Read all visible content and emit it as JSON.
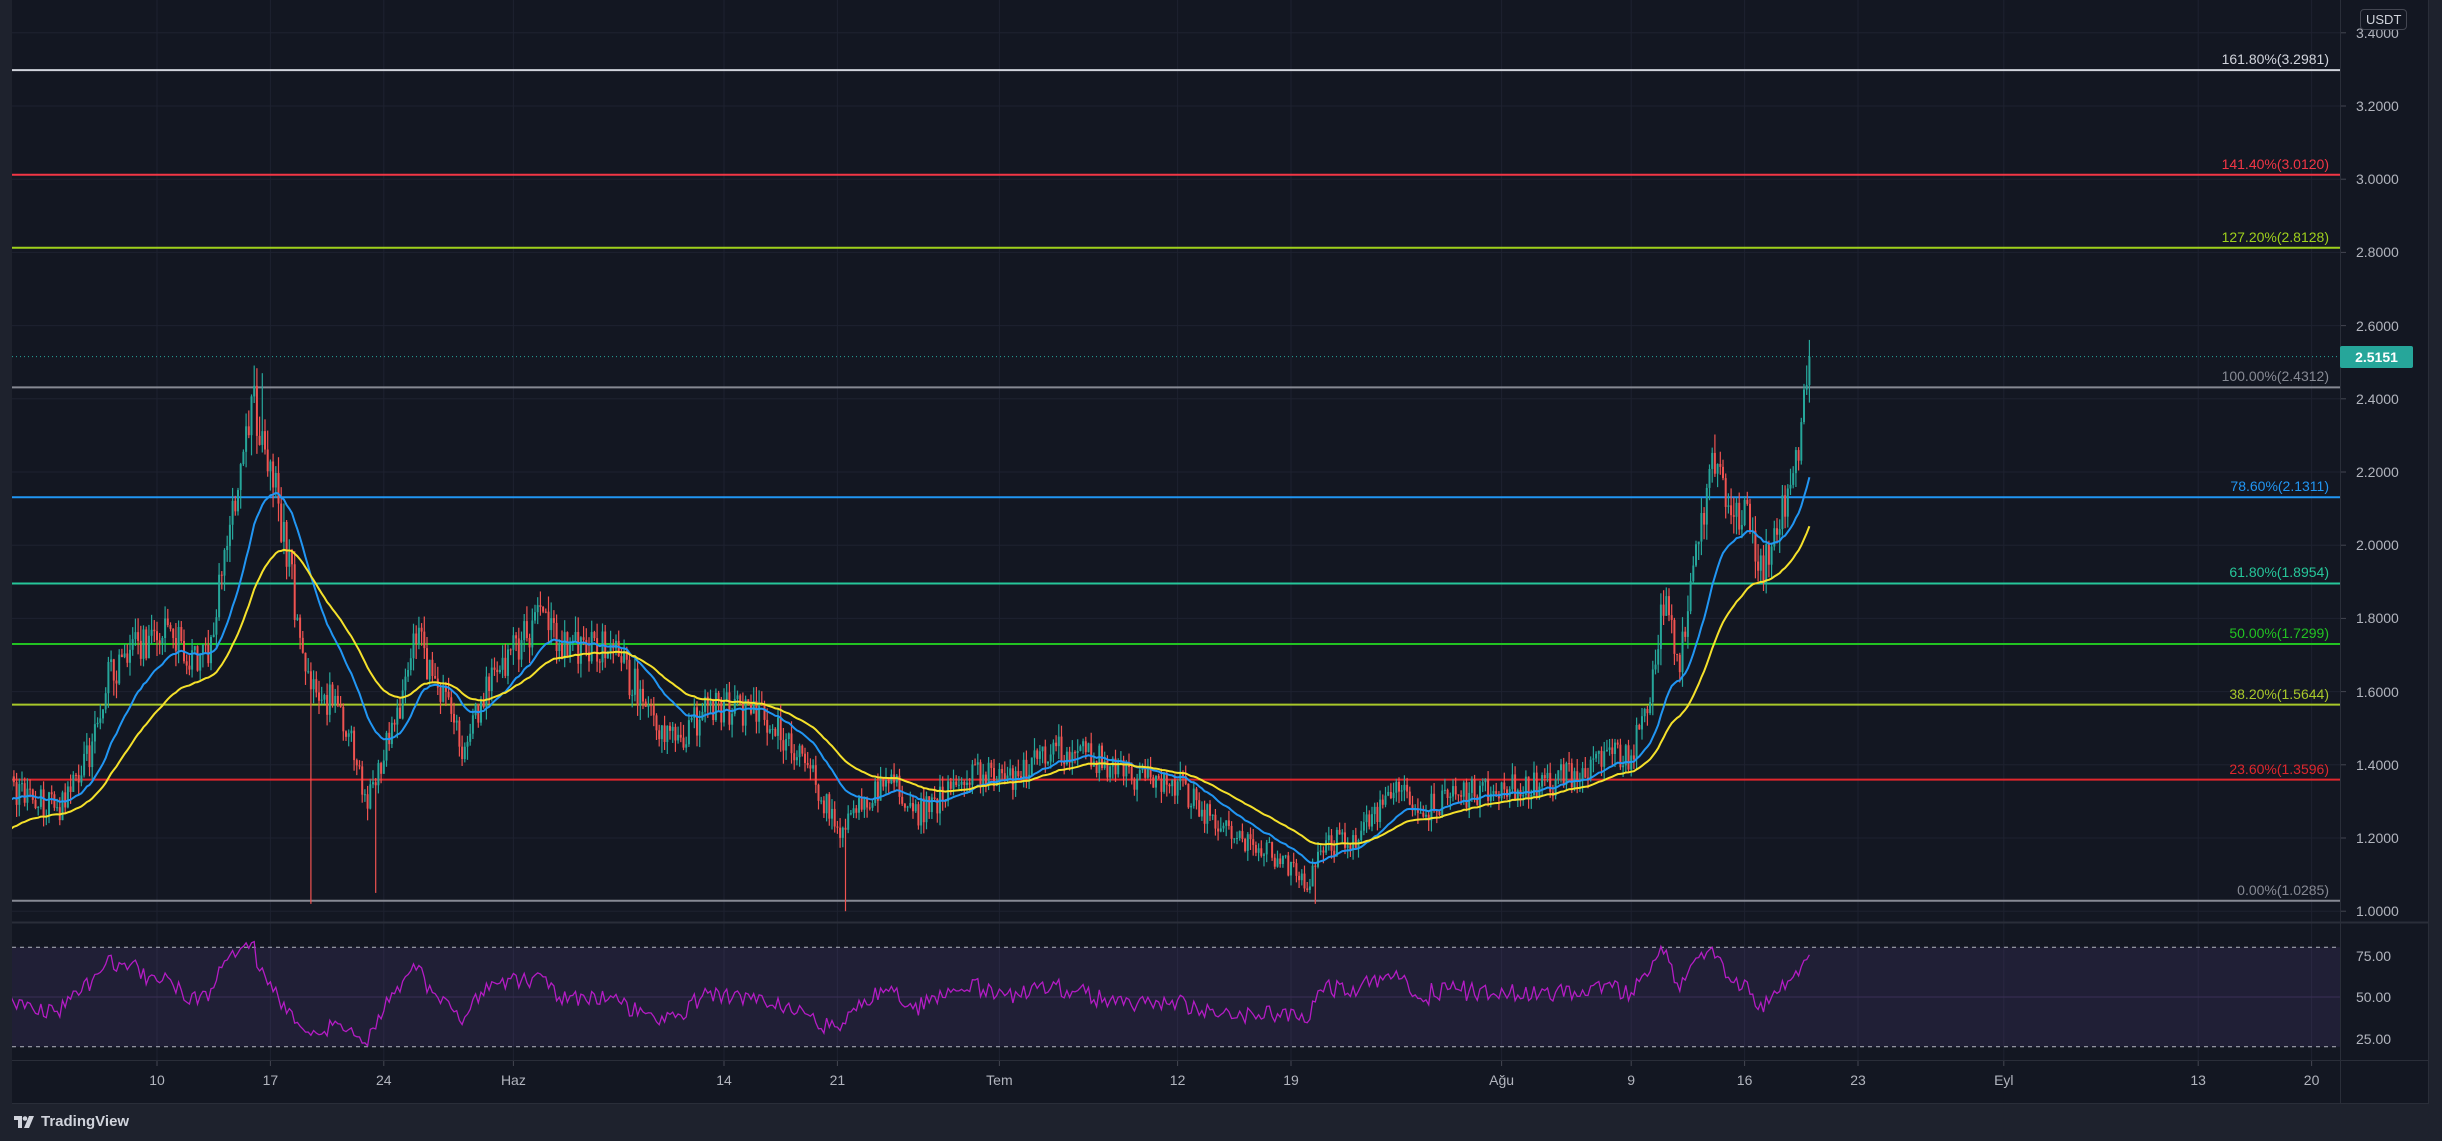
{
  "chart": {
    "quote_currency": "USDT",
    "last_price_label": "2.5151",
    "colors": {
      "background": "#131722",
      "up_candle": "#26a69a",
      "down_candle": "#ef5350",
      "fast_ma": "#2196f3",
      "slow_ma": "#f5e12b",
      "rsi_line": "#b41cc4",
      "rsi_band": "#7e57c2",
      "last_price": "#26a69a",
      "grid": "#1e2230"
    }
  },
  "price_axis": {
    "labels": [
      "3.4000",
      "3.2000",
      "3.0000",
      "2.8000",
      "2.6000",
      "2.4000",
      "2.2000",
      "2.0000",
      "1.8000",
      "1.6000",
      "1.4000",
      "1.2000",
      "1.0000"
    ]
  },
  "rsi_axis": {
    "labels": [
      "75.00",
      "50.00",
      "25.00"
    ]
  },
  "time_axis": {
    "ticks": [
      {
        "label": "10",
        "date": "05-10"
      },
      {
        "label": "17",
        "date": "05-17"
      },
      {
        "label": "24",
        "date": "05-24"
      },
      {
        "label": "Haz",
        "date": "06-01"
      },
      {
        "label": "14",
        "date": "06-14"
      },
      {
        "label": "21",
        "date": "06-21"
      },
      {
        "label": "Tem",
        "date": "07-01"
      },
      {
        "label": "12",
        "date": "07-12"
      },
      {
        "label": "19",
        "date": "07-19"
      },
      {
        "label": "Ağu",
        "date": "08-01"
      },
      {
        "label": "9",
        "date": "08-09"
      },
      {
        "label": "16",
        "date": "08-16"
      },
      {
        "label": "23",
        "date": "08-23"
      },
      {
        "label": "Eyl",
        "date": "09-01"
      },
      {
        "label": "13",
        "date": "09-13"
      },
      {
        "label": "20",
        "date": "09-20"
      }
    ]
  },
  "fib_levels": [
    {
      "label": "161.80%(3.2981)",
      "price": 3.2981,
      "color": "#d1d4dc"
    },
    {
      "label": "141.40%(3.0120)",
      "price": 3.012,
      "color": "#f23645"
    },
    {
      "label": "127.20%(2.8128)",
      "price": 2.8128,
      "color": "#9fd01c"
    },
    {
      "label": "100.00%(2.4312)",
      "price": 2.4312,
      "color": "#868993"
    },
    {
      "label": "78.60%(2.1311)",
      "price": 2.1311,
      "color": "#2196f3"
    },
    {
      "label": "61.80%(1.8954)",
      "price": 1.8954,
      "color": "#26c69a"
    },
    {
      "label": "50.00%(1.7299)",
      "price": 1.7299,
      "color": "#22c322"
    },
    {
      "label": "38.20%(1.5644)",
      "price": 1.5644,
      "color": "#a8c82a"
    },
    {
      "label": "23.60%(1.3596)",
      "price": 1.3596,
      "color": "#e0272d"
    },
    {
      "label": "0.00%(1.0285)",
      "price": 1.0285,
      "color": "#868993"
    }
  ],
  "footer": {
    "brand": "TradingView"
  },
  "chart_data": {
    "type": "candlestick",
    "ylim": [
      1.0,
      3.4
    ],
    "last_price": 2.5151,
    "price_path": [
      [
        "05-01",
        1.33
      ],
      [
        "05-04",
        1.28
      ],
      [
        "05-06",
        1.45
      ],
      [
        "05-07",
        1.65
      ],
      [
        "05-10",
        1.77
      ],
      [
        "05-13",
        1.68
      ],
      [
        "05-14",
        1.93
      ],
      [
        "05-15",
        2.15
      ],
      [
        "05-16",
        2.38
      ],
      [
        "05-17",
        2.2
      ],
      [
        "05-18",
        2.0
      ],
      [
        "05-19",
        1.7
      ],
      [
        "05-20",
        1.55
      ],
      [
        "05-21",
        1.6
      ],
      [
        "05-22",
        1.45
      ],
      [
        "05-23",
        1.3
      ],
      [
        "05-25",
        1.55
      ],
      [
        "05-26",
        1.75
      ],
      [
        "05-28",
        1.55
      ],
      [
        "05-29",
        1.42
      ],
      [
        "05-30",
        1.58
      ],
      [
        "06-01",
        1.72
      ],
      [
        "06-03",
        1.82
      ],
      [
        "06-04",
        1.72
      ],
      [
        "06-07",
        1.72
      ],
      [
        "06-09",
        1.58
      ],
      [
        "06-11",
        1.45
      ],
      [
        "06-13",
        1.56
      ],
      [
        "06-16",
        1.55
      ],
      [
        "06-19",
        1.42
      ],
      [
        "06-21",
        1.22
      ],
      [
        "06-23",
        1.3
      ],
      [
        "06-24",
        1.38
      ],
      [
        "06-26",
        1.27
      ],
      [
        "06-28",
        1.33
      ],
      [
        "06-30",
        1.38
      ],
      [
        "07-02",
        1.35
      ],
      [
        "07-03",
        1.42
      ],
      [
        "07-04",
        1.45
      ],
      [
        "07-07",
        1.42
      ],
      [
        "07-09",
        1.37
      ],
      [
        "07-12",
        1.35
      ],
      [
        "07-14",
        1.25
      ],
      [
        "07-17",
        1.18
      ],
      [
        "07-19",
        1.12
      ],
      [
        "07-20",
        1.07
      ],
      [
        "07-21",
        1.18
      ],
      [
        "07-23",
        1.2
      ],
      [
        "07-24",
        1.25
      ],
      [
        "07-26",
        1.35
      ],
      [
        "07-27",
        1.27
      ],
      [
        "07-28",
        1.3
      ],
      [
        "07-31",
        1.33
      ],
      [
        "08-04",
        1.35
      ],
      [
        "08-05",
        1.37
      ],
      [
        "08-07",
        1.42
      ],
      [
        "08-09",
        1.43
      ],
      [
        "08-10",
        1.55
      ],
      [
        "08-11",
        1.85
      ],
      [
        "08-12",
        1.7
      ],
      [
        "08-13",
        1.95
      ],
      [
        "08-14",
        2.2
      ],
      [
        "08-15",
        2.12
      ],
      [
        "08-16",
        2.08
      ],
      [
        "08-17",
        1.93
      ],
      [
        "08-18",
        2.07
      ],
      [
        "08-19",
        2.15
      ],
      [
        "08-20",
        2.5151
      ]
    ],
    "extreme_wicks": [
      [
        "05-16",
        2.47
      ],
      [
        "05-19",
        1.02
      ],
      [
        "05-23",
        1.05
      ],
      [
        "06-21",
        1.0
      ],
      [
        "07-20",
        1.02
      ],
      [
        "08-20",
        2.54
      ]
    ],
    "rsi": {
      "ylim": [
        12,
        92
      ],
      "upper_band": 80,
      "lower_band": 20
    }
  }
}
